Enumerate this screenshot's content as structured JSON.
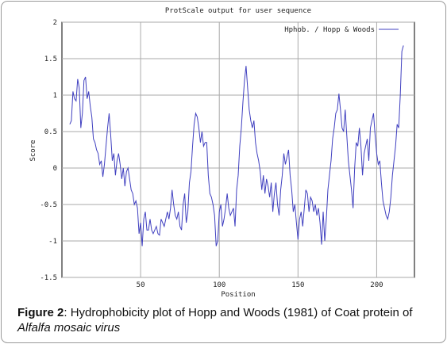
{
  "chart_data": {
    "type": "line",
    "title": "ProtScale output for user sequence",
    "xlabel": "Position",
    "ylabel": "Score",
    "xlim": [
      0,
      224
    ],
    "ylim": [
      -1.5,
      2
    ],
    "xticks": [
      50,
      100,
      150,
      200
    ],
    "yticks": [
      2,
      1.5,
      1,
      0.5,
      0,
      -0.5,
      -1,
      -1.5
    ],
    "grid": true,
    "legend": "top-right",
    "x": [
      5,
      6,
      7,
      8,
      9,
      10,
      11,
      12,
      13,
      14,
      15,
      16,
      17,
      18,
      19,
      20,
      21,
      22,
      23,
      24,
      25,
      26,
      27,
      28,
      29,
      30,
      31,
      32,
      33,
      34,
      35,
      36,
      37,
      38,
      39,
      40,
      41,
      42,
      43,
      44,
      45,
      46,
      47,
      48,
      49,
      50,
      51,
      52,
      53,
      54,
      55,
      56,
      57,
      58,
      59,
      60,
      61,
      62,
      63,
      64,
      65,
      66,
      67,
      68,
      69,
      70,
      71,
      72,
      73,
      74,
      75,
      76,
      77,
      78,
      79,
      80,
      81,
      82,
      83,
      84,
      85,
      86,
      87,
      88,
      89,
      90,
      91,
      92,
      93,
      94,
      95,
      96,
      97,
      98,
      99,
      100,
      101,
      102,
      103,
      104,
      105,
      106,
      107,
      108,
      109,
      110,
      111,
      112,
      113,
      114,
      115,
      116,
      117,
      118,
      119,
      120,
      121,
      122,
      123,
      124,
      125,
      126,
      127,
      128,
      129,
      130,
      131,
      132,
      133,
      134,
      135,
      136,
      137,
      138,
      139,
      140,
      141,
      142,
      143,
      144,
      145,
      146,
      147,
      148,
      149,
      150,
      151,
      152,
      153,
      154,
      155,
      156,
      157,
      158,
      159,
      160,
      161,
      162,
      163,
      164,
      165,
      166,
      167,
      168,
      169,
      170,
      171,
      172,
      173,
      174,
      175,
      176,
      177,
      178,
      179,
      180,
      181,
      182,
      183,
      184,
      185,
      186,
      187,
      188,
      189,
      190,
      191,
      192,
      193,
      194,
      195,
      196,
      197,
      198,
      199,
      200,
      201,
      202,
      203,
      204,
      205,
      206,
      207,
      208,
      209,
      210,
      211,
      212,
      213,
      214,
      215,
      216,
      217
    ],
    "series": [
      {
        "name": "Hphob. / Hopp & Woods",
        "color": "#4040c0",
        "values": [
          0.6,
          0.65,
          1.05,
          0.95,
          0.92,
          1.22,
          1.1,
          0.55,
          0.75,
          1.2,
          1.25,
          0.95,
          1.05,
          0.85,
          0.7,
          0.4,
          0.35,
          0.25,
          0.2,
          0.05,
          0.1,
          -0.12,
          0.05,
          0.3,
          0.55,
          0.75,
          0.45,
          0.1,
          0.2,
          -0.1,
          0.1,
          0.2,
          0.05,
          -0.15,
          0.0,
          -0.25,
          -0.05,
          0.0,
          -0.15,
          -0.3,
          -0.35,
          -0.5,
          -0.45,
          -0.55,
          -0.9,
          -0.75,
          -1.07,
          -0.7,
          -0.6,
          -0.85,
          -0.85,
          -0.7,
          -0.85,
          -0.9,
          -0.85,
          -0.8,
          -0.9,
          -0.92,
          -0.7,
          -0.75,
          -0.8,
          -0.7,
          -0.6,
          -0.7,
          -0.55,
          -0.3,
          -0.5,
          -0.65,
          -0.7,
          -0.6,
          -0.8,
          -0.85,
          -0.5,
          -0.35,
          -0.75,
          -0.6,
          -0.2,
          -0.05,
          0.3,
          0.6,
          0.75,
          0.7,
          0.55,
          0.35,
          0.5,
          0.3,
          0.35,
          0.35,
          -0.1,
          -0.35,
          -0.4,
          -0.5,
          -0.65,
          -1.07,
          -1.0,
          -0.6,
          -0.5,
          -0.8,
          -0.7,
          -0.55,
          -0.35,
          -0.55,
          -0.65,
          -0.6,
          -0.55,
          -0.8,
          -0.3,
          -0.1,
          0.3,
          0.55,
          0.9,
          1.2,
          1.4,
          1.1,
          0.8,
          0.65,
          0.55,
          0.65,
          0.35,
          0.2,
          0.1,
          -0.05,
          -0.3,
          -0.1,
          -0.35,
          -0.15,
          -0.25,
          -0.4,
          -0.2,
          -0.6,
          -0.35,
          -0.2,
          -0.5,
          -0.65,
          -0.3,
          -0.1,
          0.2,
          0.05,
          0.15,
          0.25,
          -0.1,
          -0.3,
          -0.6,
          -0.5,
          -0.75,
          -0.98,
          -0.7,
          -0.6,
          -0.8,
          -0.55,
          -0.3,
          -0.35,
          -0.6,
          -0.4,
          -0.45,
          -0.6,
          -0.5,
          -0.65,
          -0.55,
          -0.75,
          -1.05,
          -0.6,
          -1.0,
          -0.7,
          -0.3,
          -0.1,
          0.1,
          0.4,
          0.55,
          0.75,
          0.8,
          1.02,
          0.8,
          0.55,
          0.5,
          0.8,
          0.45,
          0.1,
          -0.1,
          -0.3,
          -0.55,
          0.0,
          0.35,
          0.3,
          0.55,
          0.3,
          -0.1,
          0.2,
          0.3,
          0.4,
          0.1,
          0.55,
          0.65,
          0.75,
          0.45,
          0.2,
          0.05,
          0.1,
          -0.2,
          -0.45,
          -0.55,
          -0.65,
          -0.7,
          -0.6,
          -0.4,
          -0.1,
          0.1,
          0.3,
          0.6,
          0.55,
          1.0,
          1.6,
          1.68
        ]
      }
    ]
  },
  "caption": {
    "label": "Figure 2",
    "text": ": Hydrophobicity plot of Hopp and Woods (1981) of Coat protein of",
    "italic": "Alfalfa mosaic virus"
  }
}
